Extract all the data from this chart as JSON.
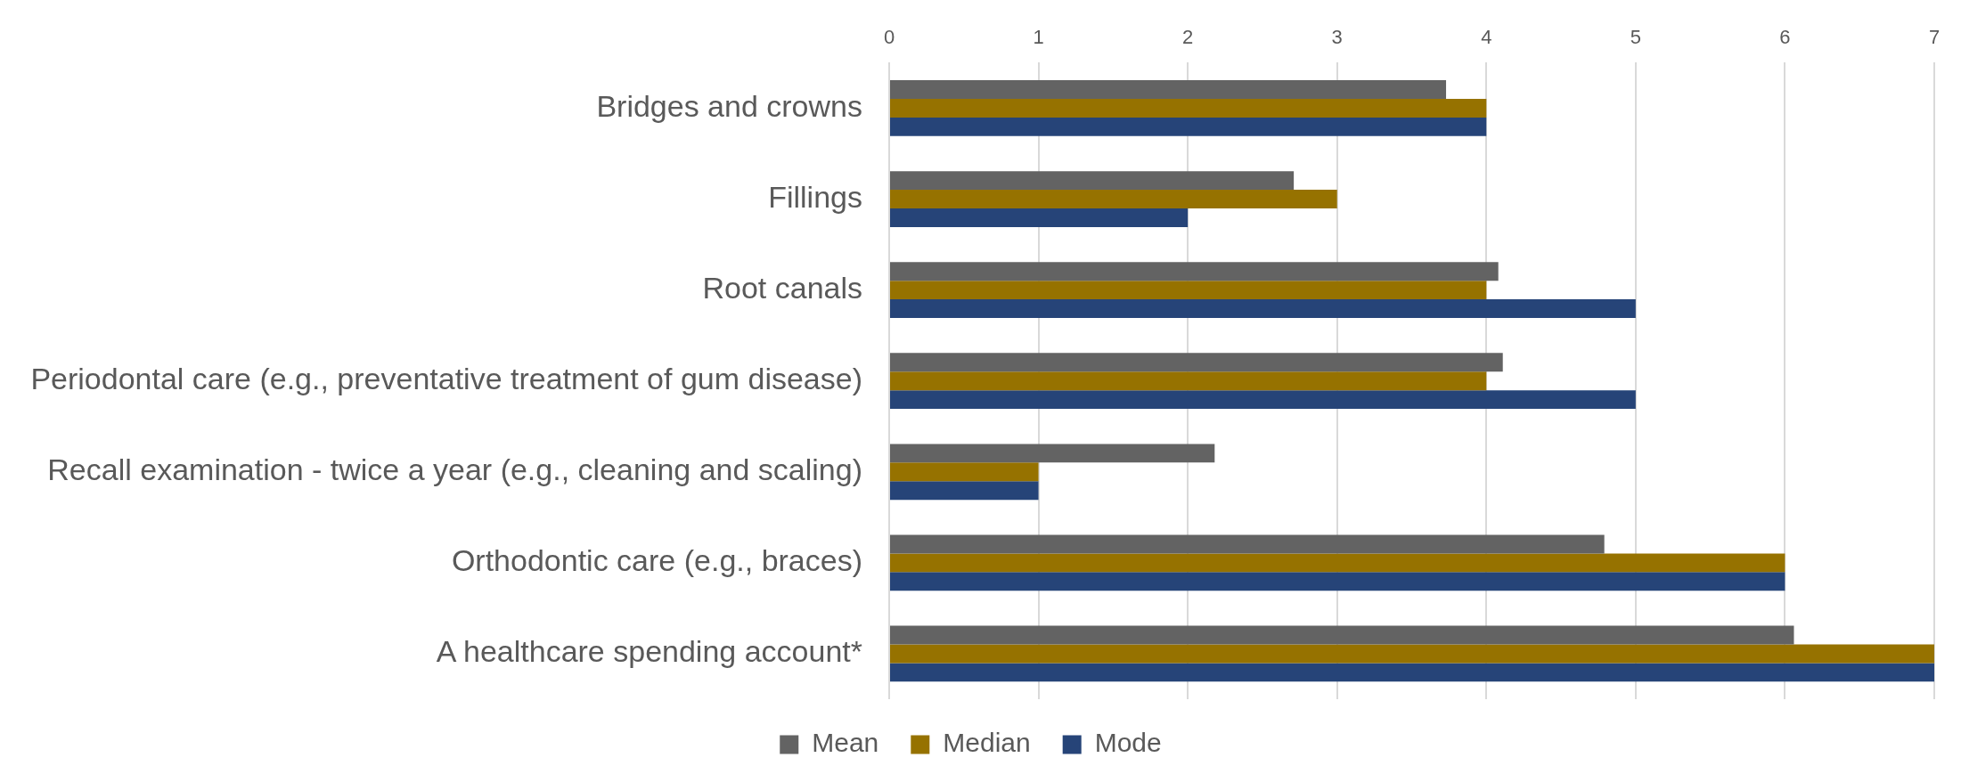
{
  "chart_data": {
    "type": "bar",
    "orientation": "horizontal",
    "categories": [
      "Bridges and crowns",
      "Fillings",
      "Root canals",
      "Periodontal care (e.g., preventative treatment of gum disease)",
      "Recall examination - twice a year (e.g., cleaning and scaling)",
      "Orthodontic care (e.g., braces)",
      "A healthcare spending account*"
    ],
    "series": [
      {
        "name": "Mean",
        "color": "#636363",
        "values": [
          3.73,
          2.71,
          4.08,
          4.11,
          2.18,
          4.79,
          6.06
        ]
      },
      {
        "name": "Median",
        "color": "#967200",
        "values": [
          4,
          3,
          4,
          4,
          1,
          6,
          7
        ]
      },
      {
        "name": "Mode",
        "color": "#264478",
        "values": [
          4,
          2,
          5,
          5,
          1,
          6,
          7
        ]
      }
    ],
    "xlim": [
      0,
      7
    ],
    "xticks": [
      0,
      1,
      2,
      3,
      4,
      5,
      6,
      7
    ],
    "grid": "x",
    "legend": "bottom"
  }
}
